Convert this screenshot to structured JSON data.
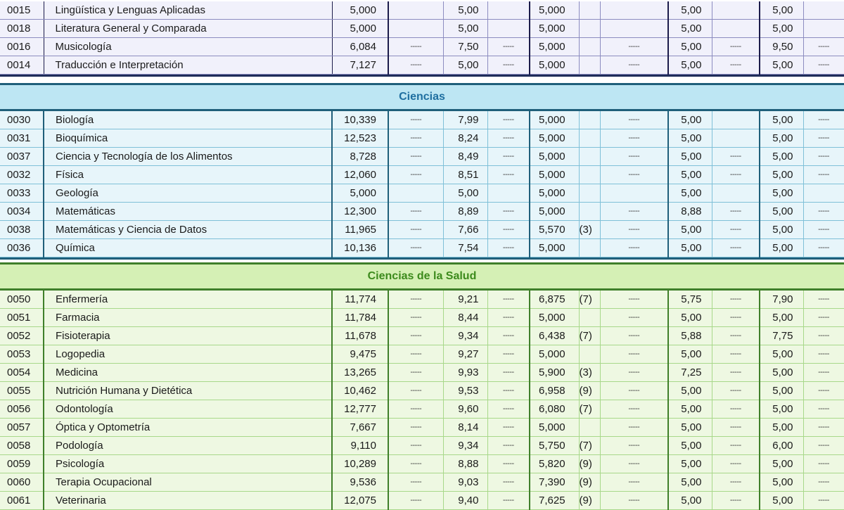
{
  "sections": {
    "humanidades": {
      "rows": [
        {
          "code": "0015",
          "name": "Lingüística y Lenguas Aplicadas",
          "n1": "5,000",
          "d1": "",
          "n2": "5,00",
          "d2": "",
          "n3": "5,000",
          "note": "",
          "d3": "",
          "n4": "5,00",
          "d4": "",
          "n5": "5,00",
          "d5": ""
        },
        {
          "code": "0018",
          "name": "Literatura General y Comparada",
          "n1": "5,000",
          "d1": "",
          "n2": "5,00",
          "d2": "",
          "n3": "5,000",
          "note": "",
          "d3": "",
          "n4": "5,00",
          "d4": "",
          "n5": "5,00",
          "d5": ""
        },
        {
          "code": "0016",
          "name": "Musicología",
          "n1": "6,084",
          "d1": "-----",
          "n2": "7,50",
          "d2": "-----",
          "n3": "5,000",
          "note": "",
          "d3": "-----",
          "n4": "5,00",
          "d4": "-----",
          "n5": "9,50",
          "d5": "-----"
        },
        {
          "code": "0014",
          "name": "Traducción e Interpretación",
          "n1": "7,127",
          "d1": "-----",
          "n2": "5,00",
          "d2": "-----",
          "n3": "5,000",
          "note": "",
          "d3": "-----",
          "n4": "5,00",
          "d4": "-----",
          "n5": "5,00",
          "d5": "-----"
        }
      ]
    },
    "ciencias": {
      "title": "Ciencias",
      "rows": [
        {
          "code": "0030",
          "name": "Biología",
          "n1": "10,339",
          "d1": "-----",
          "n2": "7,99",
          "d2": "-----",
          "n3": "5,000",
          "note": "",
          "d3": "-----",
          "n4": "5,00",
          "d4": "",
          "n5": "5,00",
          "d5": "-----"
        },
        {
          "code": "0031",
          "name": "Bioquímica",
          "n1": "12,523",
          "d1": "-----",
          "n2": "8,24",
          "d2": "-----",
          "n3": "5,000",
          "note": "",
          "d3": "-----",
          "n4": "5,00",
          "d4": "",
          "n5": "5,00",
          "d5": "-----"
        },
        {
          "code": "0037",
          "name": "Ciencia y Tecnología de los Alimentos",
          "n1": "8,728",
          "d1": "-----",
          "n2": "8,49",
          "d2": "-----",
          "n3": "5,000",
          "note": "",
          "d3": "-----",
          "n4": "5,00",
          "d4": "-----",
          "n5": "5,00",
          "d5": "-----"
        },
        {
          "code": "0032",
          "name": "Física",
          "n1": "12,060",
          "d1": "-----",
          "n2": "8,51",
          "d2": "-----",
          "n3": "5,000",
          "note": "",
          "d3": "-----",
          "n4": "5,00",
          "d4": "-----",
          "n5": "5,00",
          "d5": "-----"
        },
        {
          "code": "0033",
          "name": "Geología",
          "n1": "5,000",
          "d1": "",
          "n2": "5,00",
          "d2": "",
          "n3": "5,000",
          "note": "",
          "d3": "",
          "n4": "5,00",
          "d4": "",
          "n5": "5,00",
          "d5": ""
        },
        {
          "code": "0034",
          "name": "Matemáticas",
          "n1": "12,300",
          "d1": "-----",
          "n2": "8,89",
          "d2": "-----",
          "n3": "5,000",
          "note": "",
          "d3": "-----",
          "n4": "8,88",
          "d4": "-----",
          "n5": "5,00",
          "d5": "-----"
        },
        {
          "code": "0038",
          "name": "Matemáticas y Ciencia de Datos",
          "n1": "11,965",
          "d1": "-----",
          "n2": "7,66",
          "d2": "-----",
          "n3": "5,570",
          "note": "(3)",
          "d3": "-----",
          "n4": "5,00",
          "d4": "-----",
          "n5": "5,00",
          "d5": "-----"
        },
        {
          "code": "0036",
          "name": "Química",
          "n1": "10,136",
          "d1": "-----",
          "n2": "7,54",
          "d2": "-----",
          "n3": "5,000",
          "note": "",
          "d3": "-----",
          "n4": "5,00",
          "d4": "-----",
          "n5": "5,00",
          "d5": "-----"
        }
      ]
    },
    "salud": {
      "title": "Ciencias de la Salud",
      "rows": [
        {
          "code": "0050",
          "name": "Enfermería",
          "n1": "11,774",
          "d1": "-----",
          "n2": "9,21",
          "d2": "-----",
          "n3": "6,875",
          "note": "(7)",
          "d3": "-----",
          "n4": "5,75",
          "d4": "-----",
          "n5": "7,90",
          "d5": "-----"
        },
        {
          "code": "0051",
          "name": "Farmacia",
          "n1": "11,784",
          "d1": "-----",
          "n2": "8,44",
          "d2": "-----",
          "n3": "5,000",
          "note": "",
          "d3": "-----",
          "n4": "5,00",
          "d4": "-----",
          "n5": "5,00",
          "d5": "-----"
        },
        {
          "code": "0052",
          "name": "Fisioterapia",
          "n1": "11,678",
          "d1": "-----",
          "n2": "9,34",
          "d2": "-----",
          "n3": "6,438",
          "note": "(7)",
          "d3": "-----",
          "n4": "5,88",
          "d4": "-----",
          "n5": "7,75",
          "d5": "-----"
        },
        {
          "code": "0053",
          "name": "Logopedia",
          "n1": "9,475",
          "d1": "-----",
          "n2": "9,27",
          "d2": "-----",
          "n3": "5,000",
          "note": "",
          "d3": "-----",
          "n4": "5,00",
          "d4": "-----",
          "n5": "5,00",
          "d5": "-----"
        },
        {
          "code": "0054",
          "name": "Medicina",
          "n1": "13,265",
          "d1": "-----",
          "n2": "9,93",
          "d2": "-----",
          "n3": "5,900",
          "note": "(3)",
          "d3": "-----",
          "n4": "7,25",
          "d4": "-----",
          "n5": "5,00",
          "d5": "-----"
        },
        {
          "code": "0055",
          "name": "Nutrición Humana y Dietética",
          "n1": "10,462",
          "d1": "-----",
          "n2": "9,53",
          "d2": "-----",
          "n3": "6,958",
          "note": "(9)",
          "d3": "-----",
          "n4": "5,00",
          "d4": "-----",
          "n5": "5,00",
          "d5": "-----"
        },
        {
          "code": "0056",
          "name": "Odontología",
          "n1": "12,777",
          "d1": "-----",
          "n2": "9,60",
          "d2": "-----",
          "n3": "6,080",
          "note": "(7)",
          "d3": "-----",
          "n4": "5,00",
          "d4": "-----",
          "n5": "5,00",
          "d5": "-----"
        },
        {
          "code": "0057",
          "name": "Óptica y Optometría",
          "n1": "7,667",
          "d1": "-----",
          "n2": "8,14",
          "d2": "-----",
          "n3": "5,000",
          "note": "",
          "d3": "-----",
          "n4": "5,00",
          "d4": "-----",
          "n5": "5,00",
          "d5": "-----"
        },
        {
          "code": "0058",
          "name": "Podología",
          "n1": "9,110",
          "d1": "-----",
          "n2": "9,34",
          "d2": "-----",
          "n3": "5,750",
          "note": "(7)",
          "d3": "-----",
          "n4": "5,00",
          "d4": "-----",
          "n5": "6,00",
          "d5": "-----"
        },
        {
          "code": "0059",
          "name": "Psicología",
          "n1": "10,289",
          "d1": "-----",
          "n2": "8,88",
          "d2": "-----",
          "n3": "5,820",
          "note": "(9)",
          "d3": "-----",
          "n4": "5,00",
          "d4": "-----",
          "n5": "5,00",
          "d5": "-----"
        },
        {
          "code": "0060",
          "name": "Terapia Ocupacional",
          "n1": "9,536",
          "d1": "-----",
          "n2": "9,03",
          "d2": "-----",
          "n3": "7,390",
          "note": "(9)",
          "d3": "-----",
          "n4": "5,00",
          "d4": "-----",
          "n5": "5,00",
          "d5": "-----"
        },
        {
          "code": "0061",
          "name": "Veterinaria",
          "n1": "12,075",
          "d1": "-----",
          "n2": "9,40",
          "d2": "-----",
          "n3": "7,625",
          "note": "(9)",
          "d3": "-----",
          "n4": "5,00",
          "d4": "-----",
          "n5": "5,00",
          "d5": "-----"
        }
      ]
    }
  }
}
